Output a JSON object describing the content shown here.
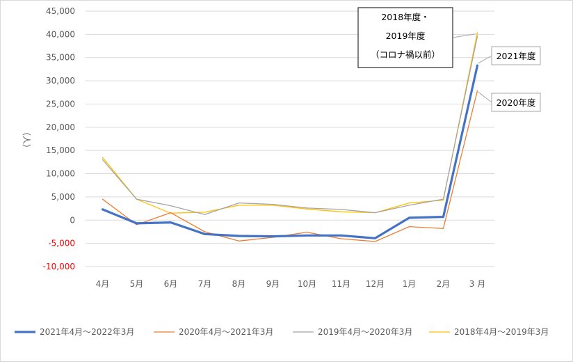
{
  "chart_data": {
    "type": "line",
    "ylabel": "（人）",
    "ylim": [
      -10000,
      45000
    ],
    "yticks": [
      {
        "label": "45,000",
        "value": 45000,
        "color": "#595959"
      },
      {
        "label": "40,000",
        "value": 40000,
        "color": "#595959"
      },
      {
        "label": "35,000",
        "value": 35000,
        "color": "#595959"
      },
      {
        "label": "30,000",
        "value": 30000,
        "color": "#595959"
      },
      {
        "label": "25,000",
        "value": 25000,
        "color": "#595959"
      },
      {
        "label": "20,000",
        "value": 20000,
        "color": "#595959"
      },
      {
        "label": "15,000",
        "value": 15000,
        "color": "#595959"
      },
      {
        "label": "10,000",
        "value": 10000,
        "color": "#595959"
      },
      {
        "label": "5,000",
        "value": 5000,
        "color": "#595959"
      },
      {
        "label": "0",
        "value": 0,
        "color": "#595959"
      },
      {
        "label": "-5,000",
        "value": -5000,
        "color": "#ff0000"
      },
      {
        "label": "-10,000",
        "value": -10000,
        "color": "#ff0000"
      }
    ],
    "categories": [
      "4月",
      "5月",
      "6月",
      "7月",
      "8月",
      "9月",
      "10月",
      "11月",
      "12月",
      "1月",
      "2月",
      "3 月"
    ],
    "grid": true,
    "legend_position": "bottom",
    "series": [
      {
        "name": "2018年4月～2019年3月",
        "color": "#ffc000",
        "width": 1.3,
        "values": [
          13500,
          4500,
          1500,
          1700,
          3200,
          3200,
          2400,
          1800,
          1600,
          3700,
          4300,
          40400
        ]
      },
      {
        "name": "2019年4月～2020年3月",
        "color": "#a5a5a5",
        "width": 1.3,
        "values": [
          13000,
          4500,
          3100,
          1200,
          3700,
          3400,
          2600,
          2300,
          1600,
          3200,
          4500,
          39600
        ]
      },
      {
        "name": "2020年4月～2021年3月",
        "color": "#ed7d31",
        "width": 1.3,
        "values": [
          4500,
          -1000,
          1600,
          -2500,
          -4500,
          -3700,
          -2600,
          -4000,
          -4600,
          -1400,
          -1800,
          27900
        ]
      },
      {
        "name": "2021年4月～2022年3月",
        "color": "#4472c4",
        "width": 3.2,
        "values": [
          2300,
          -700,
          -500,
          -3000,
          -3400,
          -3500,
          -3300,
          -3300,
          -3900,
          500,
          700,
          33300
        ]
      }
    ],
    "legend_order": [
      3,
      2,
      1,
      0
    ],
    "annotations": [
      {
        "lines": [
          "2018年度・",
          "2019年度",
          "（コロナ禍以前）"
        ]
      },
      {
        "lines": [
          "2021年度"
        ]
      },
      {
        "lines": [
          "2020年度"
        ]
      }
    ]
  }
}
